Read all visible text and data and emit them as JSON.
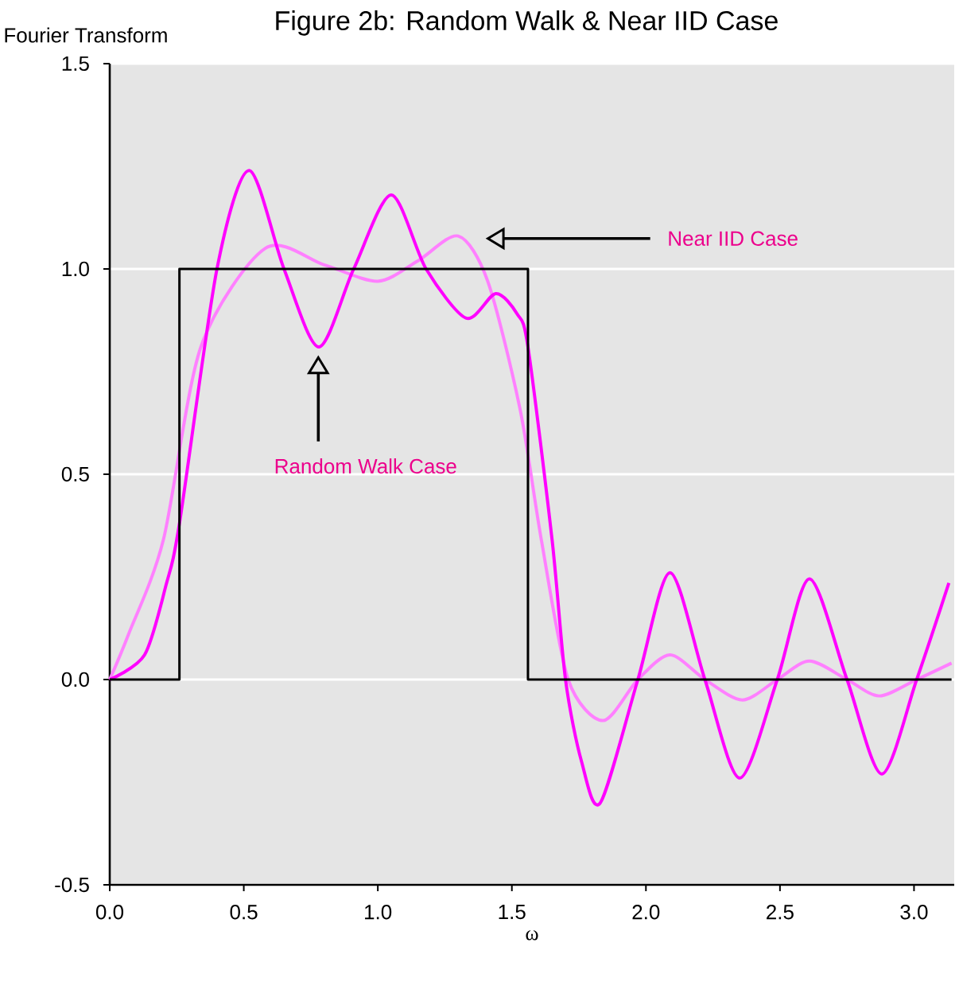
{
  "chart_data": {
    "type": "line",
    "title": "Figure 2b: Random Walk & Near IID Case",
    "ylabel": "Fourier Transform",
    "xlabel": "ω",
    "xlim": [
      0,
      3.15
    ],
    "ylim": [
      -0.5,
      1.5
    ],
    "xticks": [
      {
        "value": 0,
        "label": "0.0"
      },
      {
        "value": 0.5,
        "label": "0.5"
      },
      {
        "value": 1,
        "label": "1.0"
      },
      {
        "value": 1.5,
        "label": "1.5"
      },
      {
        "value": 2,
        "label": "2.0"
      },
      {
        "value": 2.5,
        "label": "2.5"
      },
      {
        "value": 3,
        "label": "3.0"
      }
    ],
    "yticks": [
      {
        "value": -0.5,
        "label": "-0.5"
      },
      {
        "value": 0,
        "label": "0.0"
      },
      {
        "value": 0.5,
        "label": "0.5"
      },
      {
        "value": 1,
        "label": "1.0"
      },
      {
        "value": 1.5,
        "label": "1.5"
      }
    ],
    "grid": "y",
    "series": [
      {
        "type": "line",
        "color": "#ff80ff",
        "x": [
          0,
          0.07,
          0.2,
          0.34,
          0.58,
          0.8,
          1.0,
          1.15,
          1.3,
          1.41,
          1.53,
          1.61,
          1.71,
          1.84,
          1.97,
          2.09,
          2.22,
          2.36,
          2.49,
          2.61,
          2.75,
          2.87,
          3.01,
          3.14
        ],
        "values": [
          0,
          0.11,
          0.34,
          0.81,
          1.05,
          1.01,
          0.97,
          1.02,
          1.08,
          0.97,
          0.66,
          0.34,
          0,
          -0.1,
          0,
          0.06,
          0,
          -0.05,
          0,
          0.045,
          0,
          -0.04,
          0,
          0.04
        ]
      },
      {
        "type": "line",
        "color": "#ff00ff",
        "x": [
          0,
          0.13,
          0.21,
          0.26,
          0.4,
          0.52,
          0.65,
          0.78,
          0.91,
          1.05,
          1.18,
          1.33,
          1.44,
          1.52,
          1.56,
          1.65,
          1.7,
          1.76,
          1.83,
          1.97,
          2.09,
          2.22,
          2.35,
          2.49,
          2.61,
          2.75,
          2.88,
          3.01,
          3.13
        ],
        "values": [
          0,
          0.06,
          0.23,
          0.38,
          1.0,
          1.24,
          1.0,
          0.81,
          1.0,
          1.18,
          1.0,
          0.88,
          0.94,
          0.89,
          0.81,
          0.34,
          0,
          -0.2,
          -0.3,
          0,
          0.26,
          0,
          -0.24,
          0,
          0.245,
          0,
          -0.23,
          0,
          0.235
        ]
      },
      {
        "type": "step",
        "color": "#000000",
        "x": [
          0,
          0.26,
          1.56,
          3.14
        ],
        "values": [
          0,
          1,
          0,
          0
        ]
      }
    ],
    "annotations": [
      "Random Walk Case",
      "Near IID Case"
    ]
  }
}
